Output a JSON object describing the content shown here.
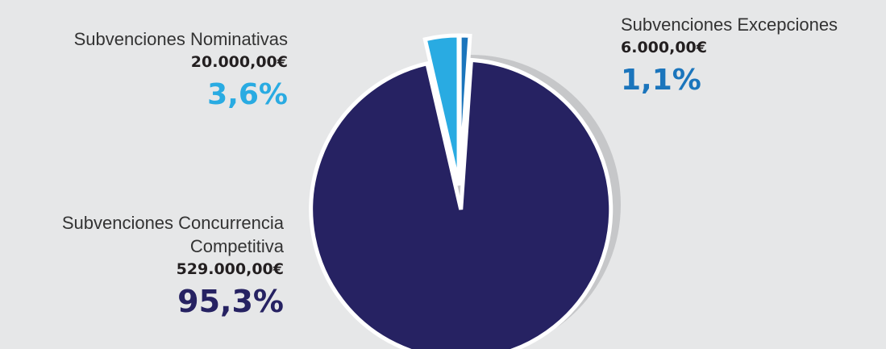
{
  "chart_data": {
    "type": "pie",
    "categories": [
      "Subvenciones Nominativas",
      "Subvenciones Excepciones",
      "Subvenciones Concurrencia Competitiva"
    ],
    "values": [
      3.6,
      1.1,
      95.3
    ],
    "value_labels": [
      "3,6%",
      "1,1%",
      "95,3%"
    ],
    "amounts": [
      "20.000,00€",
      "6.000,00€",
      "529.000,00€"
    ],
    "colors": [
      "#29abe2",
      "#1b75bc",
      "#262262"
    ]
  }
}
